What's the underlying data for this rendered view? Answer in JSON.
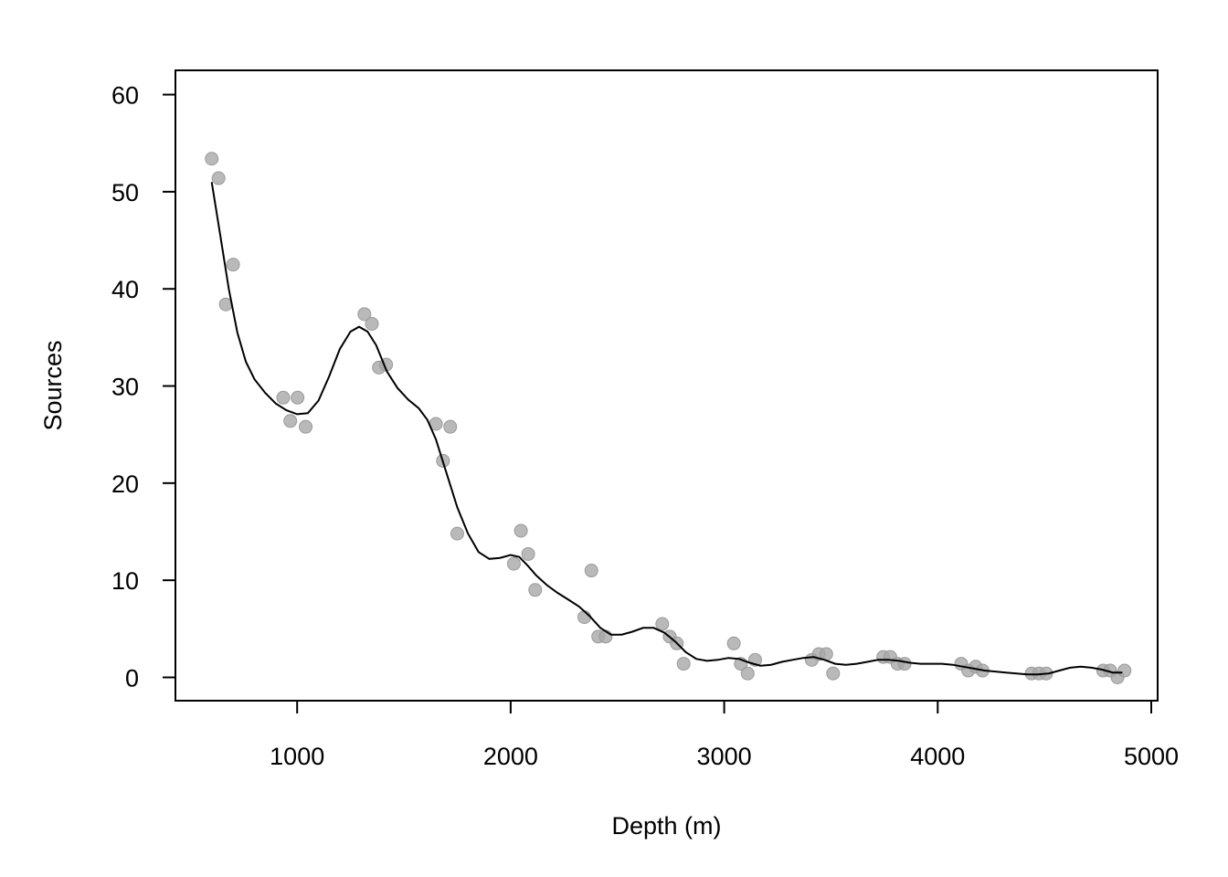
{
  "chart_data": {
    "type": "scatter",
    "title": "",
    "xlabel": "Depth (m)",
    "ylabel": "Sources",
    "xlim": [
      430,
      5030
    ],
    "ylim": [
      -2.4,
      62.5
    ],
    "x_ticks": [
      1000,
      2000,
      3000,
      4000,
      5000
    ],
    "y_ticks": [
      0,
      10,
      20,
      30,
      40,
      50,
      60
    ],
    "grid": false,
    "legend": "none",
    "colors": {
      "points": "#a8a8a8",
      "point_edge": "#9a9a9a",
      "curve": "#000000",
      "axis": "#000000"
    },
    "series": [
      {
        "type": "scatter",
        "points": [
          [
            600,
            53.4
          ],
          [
            632,
            51.4
          ],
          [
            666,
            38.4
          ],
          [
            700,
            42.5
          ],
          [
            935,
            28.8
          ],
          [
            968,
            26.4
          ],
          [
            1002,
            28.8
          ],
          [
            1040,
            25.8
          ],
          [
            1315,
            37.4
          ],
          [
            1350,
            36.4
          ],
          [
            1383,
            31.9
          ],
          [
            1417,
            32.2
          ],
          [
            1650,
            26.1
          ],
          [
            1683,
            22.3
          ],
          [
            1717,
            25.8
          ],
          [
            1750,
            14.8
          ],
          [
            2015,
            11.7
          ],
          [
            2048,
            15.1
          ],
          [
            2082,
            12.7
          ],
          [
            2115,
            9.0
          ],
          [
            2345,
            6.2
          ],
          [
            2378,
            11.0
          ],
          [
            2410,
            4.2
          ],
          [
            2445,
            4.2
          ],
          [
            2710,
            5.5
          ],
          [
            2745,
            4.2
          ],
          [
            2778,
            3.5
          ],
          [
            2810,
            1.4
          ],
          [
            3045,
            3.5
          ],
          [
            3078,
            1.4
          ],
          [
            3110,
            0.4
          ],
          [
            3145,
            1.8
          ],
          [
            3410,
            1.8
          ],
          [
            3443,
            2.4
          ],
          [
            3478,
            2.4
          ],
          [
            3510,
            0.4
          ],
          [
            3745,
            2.1
          ],
          [
            3778,
            2.1
          ],
          [
            3812,
            1.4
          ],
          [
            3845,
            1.4
          ],
          [
            4110,
            1.4
          ],
          [
            4143,
            0.7
          ],
          [
            4178,
            1.1
          ],
          [
            4210,
            0.7
          ],
          [
            4440,
            0.4
          ],
          [
            4475,
            0.4
          ],
          [
            4508,
            0.4
          ],
          [
            4775,
            0.7
          ],
          [
            4808,
            0.7
          ],
          [
            4842,
            0.0
          ],
          [
            4875,
            0.7
          ]
        ]
      },
      {
        "type": "line",
        "points": [
          [
            600,
            51.0
          ],
          [
            640,
            45.5
          ],
          [
            680,
            40.0
          ],
          [
            720,
            35.5
          ],
          [
            760,
            32.5
          ],
          [
            800,
            30.7
          ],
          [
            850,
            29.3
          ],
          [
            900,
            28.2
          ],
          [
            950,
            27.5
          ],
          [
            1000,
            27.1
          ],
          [
            1050,
            27.2
          ],
          [
            1100,
            28.5
          ],
          [
            1150,
            31.0
          ],
          [
            1200,
            33.8
          ],
          [
            1250,
            35.6
          ],
          [
            1290,
            36.1
          ],
          [
            1330,
            35.6
          ],
          [
            1370,
            34.2
          ],
          [
            1420,
            31.5
          ],
          [
            1470,
            29.8
          ],
          [
            1520,
            28.6
          ],
          [
            1570,
            27.7
          ],
          [
            1610,
            26.5
          ],
          [
            1650,
            24.5
          ],
          [
            1700,
            21.0
          ],
          [
            1750,
            17.5
          ],
          [
            1800,
            14.8
          ],
          [
            1850,
            12.9
          ],
          [
            1900,
            12.2
          ],
          [
            1950,
            12.3
          ],
          [
            2000,
            12.6
          ],
          [
            2040,
            12.4
          ],
          [
            2080,
            11.5
          ],
          [
            2120,
            10.5
          ],
          [
            2170,
            9.5
          ],
          [
            2220,
            8.7
          ],
          [
            2270,
            8.0
          ],
          [
            2320,
            7.3
          ],
          [
            2370,
            6.3
          ],
          [
            2420,
            5.1
          ],
          [
            2470,
            4.4
          ],
          [
            2520,
            4.4
          ],
          [
            2570,
            4.7
          ],
          [
            2620,
            5.1
          ],
          [
            2670,
            5.1
          ],
          [
            2720,
            4.6
          ],
          [
            2770,
            3.7
          ],
          [
            2820,
            2.6
          ],
          [
            2870,
            1.9
          ],
          [
            2920,
            1.7
          ],
          [
            2970,
            1.8
          ],
          [
            3020,
            2.0
          ],
          [
            3070,
            1.9
          ],
          [
            3120,
            1.5
          ],
          [
            3170,
            1.2
          ],
          [
            3220,
            1.3
          ],
          [
            3270,
            1.6
          ],
          [
            3320,
            1.8
          ],
          [
            3370,
            2.0
          ],
          [
            3420,
            2.1
          ],
          [
            3470,
            1.8
          ],
          [
            3520,
            1.4
          ],
          [
            3570,
            1.3
          ],
          [
            3620,
            1.4
          ],
          [
            3670,
            1.6
          ],
          [
            3720,
            1.8
          ],
          [
            3770,
            1.8
          ],
          [
            3820,
            1.7
          ],
          [
            3870,
            1.5
          ],
          [
            3920,
            1.4
          ],
          [
            3970,
            1.4
          ],
          [
            4020,
            1.4
          ],
          [
            4070,
            1.3
          ],
          [
            4120,
            1.1
          ],
          [
            4170,
            0.9
          ],
          [
            4220,
            0.7
          ],
          [
            4270,
            0.6
          ],
          [
            4320,
            0.5
          ],
          [
            4370,
            0.4
          ],
          [
            4420,
            0.3
          ],
          [
            4470,
            0.3
          ],
          [
            4520,
            0.4
          ],
          [
            4570,
            0.7
          ],
          [
            4620,
            1.0
          ],
          [
            4670,
            1.1
          ],
          [
            4720,
            1.0
          ],
          [
            4770,
            0.8
          ],
          [
            4820,
            0.5
          ],
          [
            4865,
            0.5
          ]
        ]
      }
    ]
  }
}
